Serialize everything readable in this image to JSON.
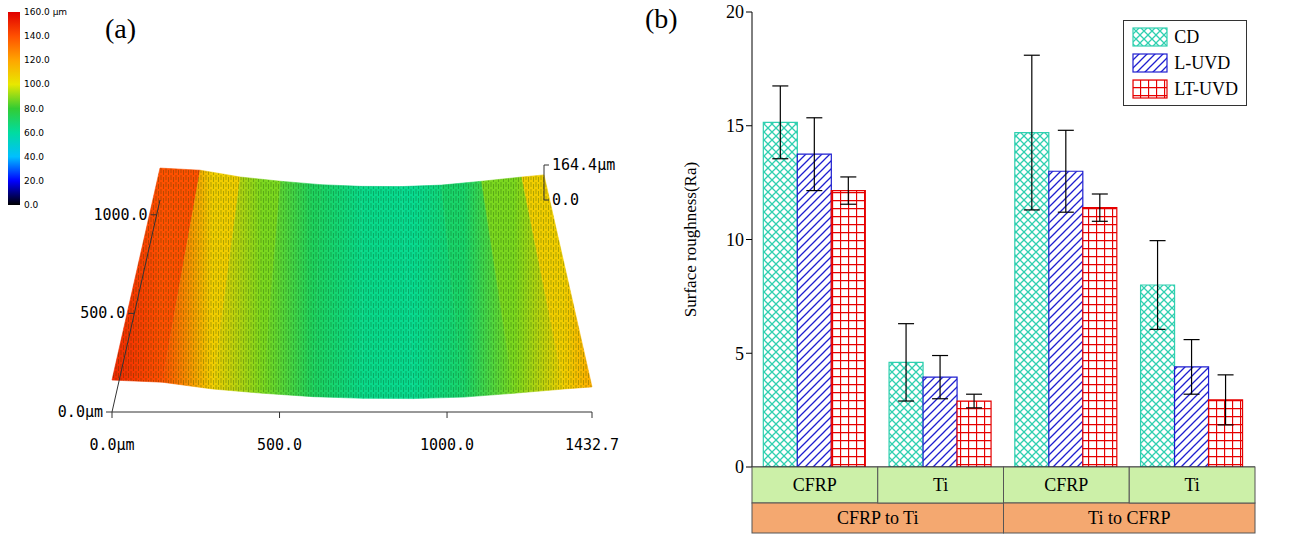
{
  "chart_data": [
    {
      "type": "surface",
      "panel": "(a)",
      "xlim": [
        0,
        1432.7
      ],
      "xticks": [
        {
          "value": 0,
          "label": "0.0μm"
        },
        {
          "value": 500,
          "label": "500.0"
        },
        {
          "value": 1000,
          "label": "1000.0"
        },
        {
          "value": 1432.7,
          "label": "1432.7"
        }
      ],
      "ylim": [
        0,
        1075
      ],
      "yticks": [
        {
          "value": 0,
          "label": "0.0μm"
        },
        {
          "value": 500,
          "label": "500.0"
        },
        {
          "value": 1000,
          "label": "1000.0"
        }
      ],
      "zlim": [
        0,
        164.4
      ],
      "zticks": [
        {
          "value": 0,
          "label": "0.0"
        },
        {
          "value": 164.4,
          "label": "164.4μm"
        }
      ],
      "x": [
        0,
        150,
        300,
        450,
        600,
        750,
        900,
        1050,
        1200,
        1350,
        1432.7
      ],
      "z": [
        150,
        140,
        108,
        88,
        72,
        64,
        63,
        70,
        88,
        108,
        118
      ],
      "colorbar": {
        "range": [
          0,
          160
        ],
        "ticks": [
          {
            "value": 160,
            "label": "160.0 μm"
          },
          {
            "value": 140,
            "label": "140.0"
          },
          {
            "value": 120,
            "label": "120.0"
          },
          {
            "value": 100,
            "label": "100.0"
          },
          {
            "value": 80,
            "label": "80.0"
          },
          {
            "value": 60,
            "label": "60.0"
          },
          {
            "value": 40,
            "label": "40.0"
          },
          {
            "value": 20,
            "label": "20.0"
          },
          {
            "value": 0,
            "label": "0.0"
          }
        ]
      }
    },
    {
      "type": "bar",
      "panel": "(b)",
      "categories": [
        "CFRP",
        "Ti",
        "CFRP",
        "Ti"
      ],
      "category_groups": [
        "CFRP to Ti",
        "CFRP to Ti",
        "Ti to CFRP",
        "Ti to CFRP"
      ],
      "y_label": "Surface roughness(Ra)",
      "ylim": [
        0,
        20
      ],
      "yticks": [
        0,
        5,
        10,
        15,
        20
      ],
      "grid": false,
      "legend": "upper right",
      "series": [
        {
          "name": "CD",
          "color": "#2fd0b0",
          "values": [
            15.15,
            4.6,
            14.7,
            8.0
          ],
          "errors": [
            1.6,
            1.7,
            3.4,
            1.95
          ]
        },
        {
          "name": "L-UVD",
          "color": "#1f1fd0",
          "values": [
            13.75,
            3.95,
            13.0,
            4.4
          ],
          "errors": [
            1.6,
            0.95,
            1.8,
            1.2
          ]
        },
        {
          "name": "LT-UVD",
          "color": "#e60000",
          "values": [
            12.15,
            2.9,
            11.4,
            2.95
          ],
          "errors": [
            0.6,
            0.3,
            0.6,
            1.1
          ]
        }
      ]
    }
  ]
}
